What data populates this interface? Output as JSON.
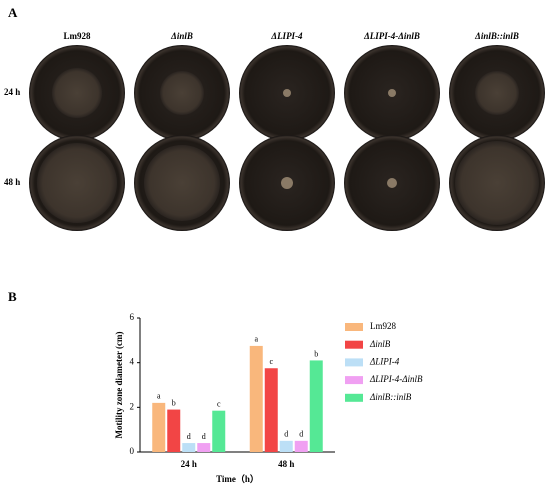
{
  "panel_labels": [
    "A",
    "B"
  ],
  "photo_grid": {
    "columns": [
      "Lm928",
      "ΔinlB",
      "ΔLIPI-4",
      "ΔLIPI-4-ΔinlB",
      "ΔinlB::inlB"
    ],
    "rows": [
      "24 h",
      "48 h"
    ]
  },
  "chart_data": {
    "type": "bar",
    "y_label": "Motility zone diameter (cm)",
    "x_label": "Time（h）",
    "categories": [
      "24 h",
      "48 h"
    ],
    "series": [
      {
        "name": "Lm928",
        "color": "#f9b77c",
        "values": [
          2.2,
          4.75
        ],
        "significance": [
          "a",
          "a"
        ]
      },
      {
        "name": "ΔinlB",
        "color": "#f24545",
        "values": [
          1.9,
          3.75
        ],
        "significance": [
          "b",
          "c"
        ]
      },
      {
        "name": "ΔLIPI-4",
        "color": "#bcdff6",
        "values": [
          0.4,
          0.5
        ],
        "significance": [
          "d",
          "d"
        ]
      },
      {
        "name": "ΔLIPI-4-ΔinlB",
        "color": "#f0a0f2",
        "values": [
          0.4,
          0.5
        ],
        "significance": [
          "d",
          "d"
        ]
      },
      {
        "name": "ΔinlB::inlB",
        "color": "#55e895",
        "values": [
          1.85,
          4.1
        ],
        "significance": [
          "c",
          "b"
        ]
      }
    ],
    "ylim": [
      0,
      6
    ],
    "yticks": [
      0,
      2,
      4,
      6
    ],
    "legend": "right"
  }
}
